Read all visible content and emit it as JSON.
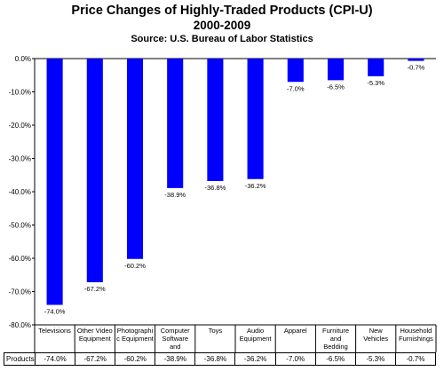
{
  "chart_data": {
    "type": "bar",
    "title": "Price Changes of Highly-Traded Products (CPI-U)",
    "subtitle": "2000-2009",
    "source": "Source: U.S. Bureau of Labor Statistics",
    "categories": [
      "Televisions",
      "Other Video Equipment",
      "Photographic Equipment",
      "Computer Software and Accessories",
      "Toys",
      "Audio Equipment",
      "Apparel",
      "Furniture and Bedding",
      "New Vehicles",
      "Household Furnishings"
    ],
    "category_labels": [
      [
        "Televisions"
      ],
      [
        "Other Video",
        "Equipment"
      ],
      [
        "Photographi",
        "c Equipment"
      ],
      [
        "Computer",
        "Software",
        "and"
      ],
      [
        "Toys"
      ],
      [
        "Audio",
        "Equipment"
      ],
      [
        "Apparel"
      ],
      [
        "Furniture",
        "and",
        "Bedding"
      ],
      [
        "New",
        "Vehicles"
      ],
      [
        "Household",
        "Furnishings"
      ]
    ],
    "series": [
      {
        "name": "Products",
        "values": [
          -74.0,
          -67.2,
          -60.2,
          -38.9,
          -36.8,
          -36.2,
          -7.0,
          -6.5,
          -5.3,
          -0.7
        ],
        "labels": [
          "-74.0%",
          "-67.2%",
          "-60.2%",
          "-38.9%",
          "-36.8%",
          "-36.2%",
          "-7.0%",
          "-6.5%",
          "-5.3%",
          "-0.7%"
        ]
      }
    ],
    "ylim": [
      -80,
      0
    ],
    "yticks": [
      "0.0%",
      "-10.0%",
      "-20.0%",
      "-30.0%",
      "-40.0%",
      "-50.0%",
      "-60.0%",
      "-70.0%",
      "-80.0%"
    ],
    "bar_color": "#0000ff",
    "grid": false,
    "legend": "data table below chart",
    "table_row_label": "Products"
  }
}
